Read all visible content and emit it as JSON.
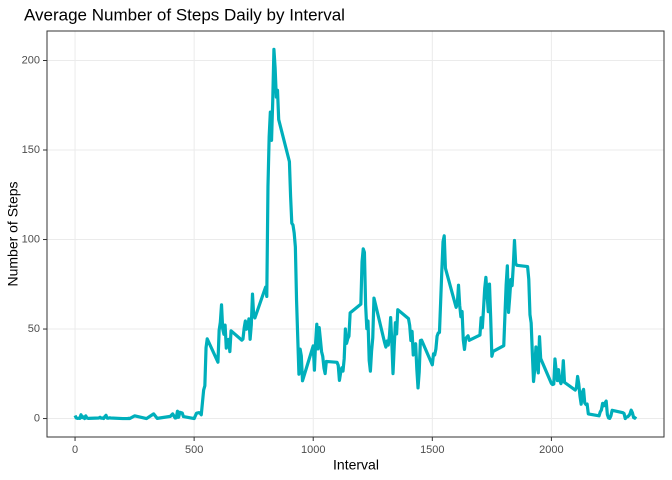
{
  "chart_data": {
    "type": "line",
    "title": "Average Number of Steps Daily by Interval",
    "x_label": "Interval",
    "y_label": "Number of Steps",
    "xlim": [
      -117.75,
      2472.75
    ],
    "xticks": [
      0,
      500,
      1000,
      1500,
      2000
    ],
    "ylim": [
      -10.31,
      216.48
    ],
    "yticks": [
      0,
      50,
      100,
      150,
      200
    ],
    "grid": true,
    "series": [
      {
        "color": "#00AFBB",
        "x": [
          0,
          5,
          10,
          15,
          20,
          25,
          30,
          35,
          40,
          45,
          50,
          55,
          100,
          105,
          110,
          115,
          120,
          125,
          130,
          135,
          140,
          145,
          150,
          200,
          220,
          225,
          230,
          250,
          300,
          330,
          345,
          400,
          410,
          420,
          425,
          430,
          435,
          440,
          450,
          455,
          500,
          510,
          520,
          525,
          530,
          540,
          545,
          550,
          555,
          600,
          605,
          610,
          615,
          620,
          625,
          630,
          635,
          640,
          645,
          650,
          655,
          700,
          705,
          710,
          715,
          720,
          725,
          730,
          735,
          740,
          745,
          750,
          755,
          800,
          805,
          810,
          815,
          820,
          825,
          830,
          835,
          840,
          845,
          850,
          855,
          900,
          905,
          910,
          915,
          920,
          925,
          930,
          935,
          940,
          945,
          950,
          955,
          1000,
          1005,
          1010,
          1015,
          1020,
          1025,
          1030,
          1035,
          1040,
          1045,
          1050,
          1055,
          1100,
          1105,
          1110,
          1115,
          1120,
          1125,
          1130,
          1135,
          1140,
          1145,
          1150,
          1155,
          1200,
          1205,
          1210,
          1215,
          1220,
          1225,
          1230,
          1235,
          1240,
          1245,
          1250,
          1255,
          1300,
          1305,
          1310,
          1315,
          1320,
          1325,
          1330,
          1335,
          1340,
          1345,
          1350,
          1355,
          1400,
          1405,
          1410,
          1415,
          1420,
          1425,
          1430,
          1435,
          1440,
          1445,
          1450,
          1455,
          1500,
          1505,
          1510,
          1515,
          1520,
          1525,
          1530,
          1535,
          1540,
          1545,
          1550,
          1555,
          1600,
          1605,
          1610,
          1615,
          1620,
          1625,
          1630,
          1635,
          1640,
          1645,
          1650,
          1655,
          1700,
          1705,
          1710,
          1715,
          1720,
          1725,
          1730,
          1735,
          1740,
          1745,
          1750,
          1755,
          1800,
          1805,
          1810,
          1815,
          1820,
          1825,
          1830,
          1835,
          1840,
          1845,
          1850,
          1855,
          1900,
          1905,
          1910,
          1915,
          1920,
          1925,
          1930,
          1935,
          1940,
          1945,
          1950,
          1955,
          2000,
          2005,
          2010,
          2015,
          2020,
          2025,
          2030,
          2035,
          2040,
          2045,
          2050,
          2055,
          2100,
          2105,
          2110,
          2115,
          2120,
          2125,
          2130,
          2135,
          2140,
          2145,
          2150,
          2155,
          2200,
          2205,
          2210,
          2215,
          2220,
          2225,
          2230,
          2235,
          2240,
          2245,
          2250,
          2255,
          2300,
          2305,
          2310,
          2315,
          2320,
          2325,
          2330,
          2335,
          2340,
          2345,
          2350,
          2355
        ],
        "values": [
          1.7,
          0.3,
          0.1,
          0.2,
          0.1,
          2.1,
          0.5,
          0.9,
          0,
          1.5,
          0.3,
          0.1,
          0.3,
          0.7,
          0.2,
          0.3,
          0,
          1.1,
          1.8,
          0.2,
          0.2,
          0.4,
          0.3,
          0,
          0,
          0.1,
          0,
          1.5,
          0,
          2.6,
          0.1,
          1.2,
          2.6,
          0.3,
          0.4,
          4.1,
          0.7,
          3.5,
          3.1,
          1.1,
          0,
          3,
          3.3,
          3,
          2.1,
          16,
          18.3,
          39.5,
          44.5,
          31.5,
          49.3,
          53.8,
          63.5,
          50,
          47.1,
          52.2,
          39.3,
          44,
          44.2,
          37.4,
          49,
          43.8,
          44.4,
          50.5,
          54.5,
          49.9,
          51,
          55.7,
          44.3,
          52.3,
          69.5,
          57.8,
          56.2,
          73.4,
          68.2,
          129.4,
          157.5,
          171.2,
          155.4,
          177.3,
          206.2,
          195.9,
          179.6,
          183.4,
          167,
          143.5,
          124,
          109.1,
          108.1,
          103.7,
          95.9,
          66.2,
          45.2,
          24.8,
          38.8,
          35,
          21.1,
          40.6,
          27,
          42.4,
          52.7,
          38.9,
          50.8,
          44.3,
          37.4,
          34.7,
          28.3,
          25.1,
          31.9,
          31.4,
          29.7,
          21.3,
          25.5,
          28.4,
          26.5,
          33.4,
          50,
          42,
          44.6,
          46,
          59,
          63.9,
          87.6,
          94.8,
          92.8,
          63.4,
          50.2,
          54.5,
          32.4,
          26.5,
          37.7,
          45.1,
          67.3,
          42.3,
          39.9,
          43.3,
          41,
          46.2,
          56.4,
          42.8,
          25.1,
          40,
          53.5,
          47.3,
          60.8,
          55.8,
          52,
          43.6,
          48.7,
          35.5,
          37.5,
          41.8,
          27.5,
          17.1,
          26.1,
          43.6,
          43.8,
          30,
          36.1,
          35.5,
          38.8,
          46,
          47.8,
          48.1,
          65.3,
          82.9,
          98.7,
          102.1,
          84,
          62.1,
          64.1,
          74.5,
          63.2,
          56.9,
          59.8,
          43.9,
          38.6,
          44.7,
          45.5,
          46.2,
          43.7,
          46.6,
          56.3,
          50.7,
          61.2,
          72.7,
          78.9,
          68.9,
          59.7,
          75.1,
          56.5,
          34.8,
          37.5,
          40.7,
          58,
          74.7,
          85.3,
          59.3,
          67.8,
          77.7,
          74.2,
          85.3,
          99.5,
          86.6,
          85.6,
          84.9,
          77.8,
          58,
          53.4,
          36.3,
          20.7,
          27.4,
          40,
          30.2,
          25.5,
          45.7,
          33.5,
          19.6,
          19,
          19.3,
          33.3,
          26.8,
          21.2,
          27.3,
          21.3,
          19.5,
          21.3,
          32.3,
          20.2,
          15.9,
          17.2,
          23.5,
          19.2,
          12.5,
          8,
          14.7,
          16.3,
          8.7,
          7.8,
          8.1,
          2.6,
          1.5,
          3.7,
          4.8,
          8.5,
          7.1,
          8.7,
          9.75,
          2.2,
          0.3,
          0.1,
          1.6,
          4.6,
          3.3,
          2.8,
          0,
          0.8,
          1,
          1.6,
          2.6,
          4.7,
          3.3,
          0.6,
          0.2,
          1.1
        ]
      }
    ]
  }
}
